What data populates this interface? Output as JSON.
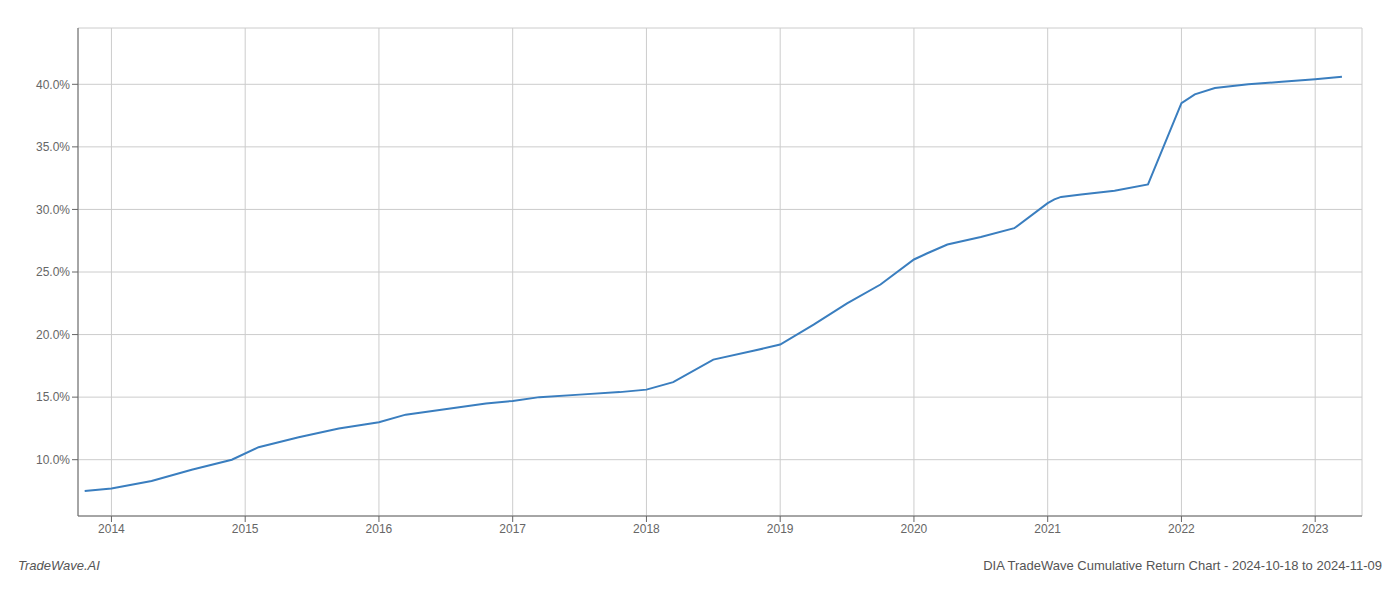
{
  "chart_data": {
    "type": "line",
    "x": [
      2013.8,
      2014.0,
      2014.3,
      2014.6,
      2014.9,
      2015.1,
      2015.4,
      2015.7,
      2016.0,
      2016.2,
      2016.4,
      2016.6,
      2016.8,
      2017.0,
      2017.2,
      2017.5,
      2017.8,
      2018.0,
      2018.2,
      2018.5,
      2018.8,
      2019.0,
      2019.25,
      2019.5,
      2019.75,
      2020.0,
      2020.1,
      2020.25,
      2020.5,
      2020.75,
      2021.0,
      2021.05,
      2021.1,
      2021.25,
      2021.5,
      2021.75,
      2022.0,
      2022.1,
      2022.25,
      2022.5,
      2022.75,
      2023.0,
      2023.2
    ],
    "values": [
      7.5,
      7.7,
      8.3,
      9.2,
      10.0,
      11.0,
      11.8,
      12.5,
      13.0,
      13.6,
      13.9,
      14.2,
      14.5,
      14.7,
      15.0,
      15.2,
      15.4,
      15.6,
      16.2,
      18.0,
      18.7,
      19.2,
      20.8,
      22.5,
      24.0,
      26.0,
      26.5,
      27.2,
      27.8,
      28.5,
      30.5,
      30.8,
      31.0,
      31.2,
      31.5,
      32.0,
      38.5,
      39.2,
      39.7,
      40.0,
      40.2,
      40.4,
      40.6
    ],
    "color": "#3a7ebf",
    "xlim": [
      2013.75,
      2023.35
    ],
    "xticks": [
      2014,
      2015,
      2016,
      2017,
      2018,
      2019,
      2020,
      2021,
      2022,
      2023
    ],
    "ylim": [
      5.5,
      44.5
    ],
    "yticks": [
      {
        "value": 10.0,
        "label": "10.0%"
      },
      {
        "value": 15.0,
        "label": "15.0%"
      },
      {
        "value": 20.0,
        "label": "20.0%"
      },
      {
        "value": 25.0,
        "label": "25.0%"
      },
      {
        "value": 30.0,
        "label": "30.0%"
      },
      {
        "value": 35.0,
        "label": "35.0%"
      },
      {
        "value": 40.0,
        "label": "40.0%"
      }
    ],
    "grid": true,
    "annotations": [
      "TradeWave.AI",
      "DIA TradeWave Cumulative Return Chart - 2024-10-18 to 2024-11-09"
    ]
  }
}
